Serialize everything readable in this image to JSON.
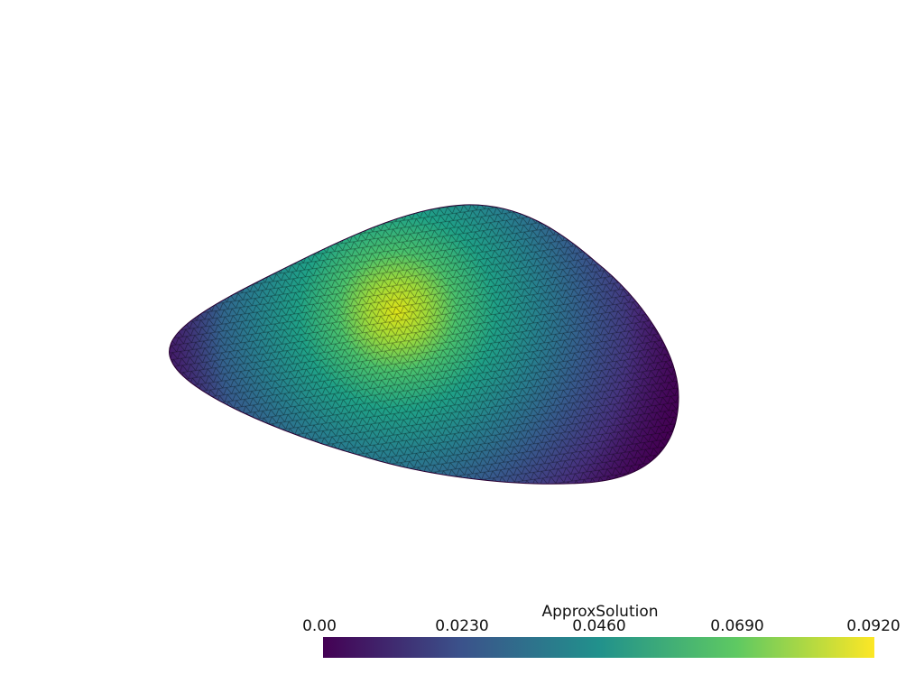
{
  "scalar_bar": {
    "title": "ApproxSolution",
    "labels": [
      "0.00",
      "0.0230",
      "0.0460",
      "0.0690",
      "0.0920"
    ],
    "range": [
      0.0,
      0.092
    ],
    "colormap": "viridis",
    "colors": [
      "#440154",
      "#3b528b",
      "#21918c",
      "#5ec962",
      "#fde725"
    ]
  },
  "mesh": {
    "type": "triangulated-surface",
    "field": "ApproxSolution",
    "background_color": "#ffffff",
    "edge_color": "#000000",
    "peak_value": 0.092
  }
}
